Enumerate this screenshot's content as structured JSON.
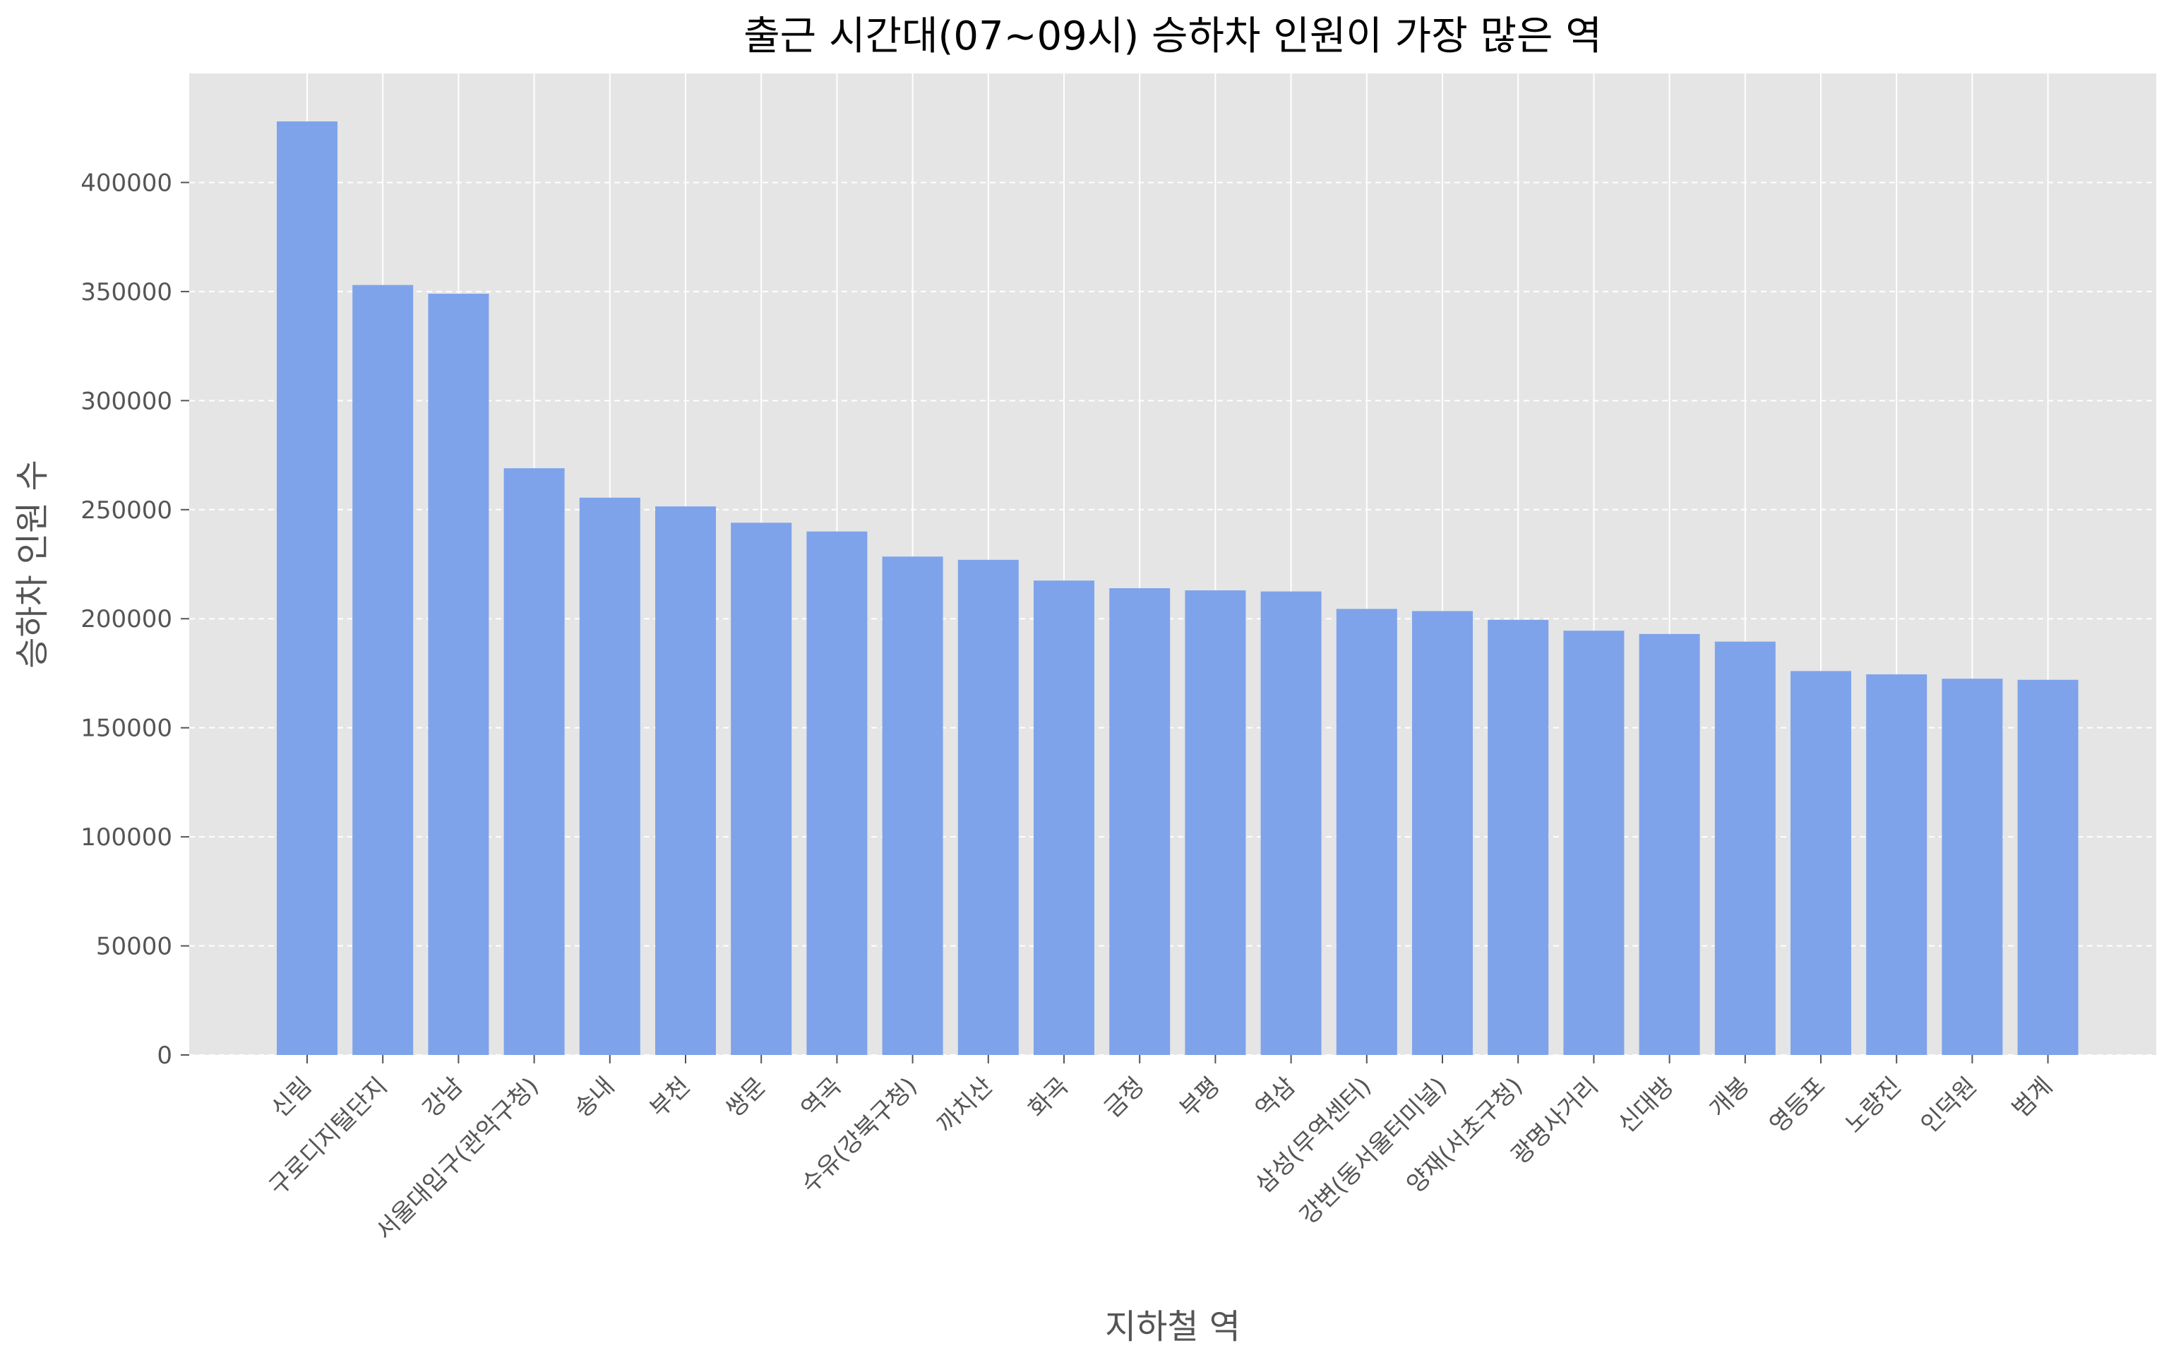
{
  "chart_data": {
    "type": "bar",
    "title": "출근 시간대(07~09시) 승하차 인원이 가장 많은 역",
    "xlabel": "지하철 역",
    "ylabel": "승하차 인원 수",
    "categories": [
      "신림",
      "구로디지털단지",
      "강남",
      "서울대입구(관악구청)",
      "송내",
      "부천",
      "쌍문",
      "역곡",
      "수유(강북구청)",
      "까치산",
      "화곡",
      "금정",
      "부평",
      "역삼",
      "삼성(무역센터)",
      "강변(동서울터미널)",
      "양재(서초구청)",
      "광명사거리",
      "신대방",
      "개봉",
      "영등포",
      "노량진",
      "인덕원",
      "범계"
    ],
    "values": [
      428000,
      353000,
      349000,
      269000,
      255500,
      251500,
      244000,
      240000,
      228500,
      227000,
      217500,
      214000,
      213000,
      212500,
      204500,
      203500,
      199500,
      194500,
      193000,
      189500,
      176000,
      174500,
      172500,
      172000
    ],
    "ylim": [
      0,
      450000
    ],
    "yticks": [
      "0",
      "50000",
      "100000",
      "150000",
      "200000",
      "250000",
      "300000",
      "350000",
      "400000"
    ],
    "grid": true,
    "bar_color": "#7ea3ea",
    "plot_background": "#e5e5e5",
    "grid_color": "#ffffff"
  }
}
